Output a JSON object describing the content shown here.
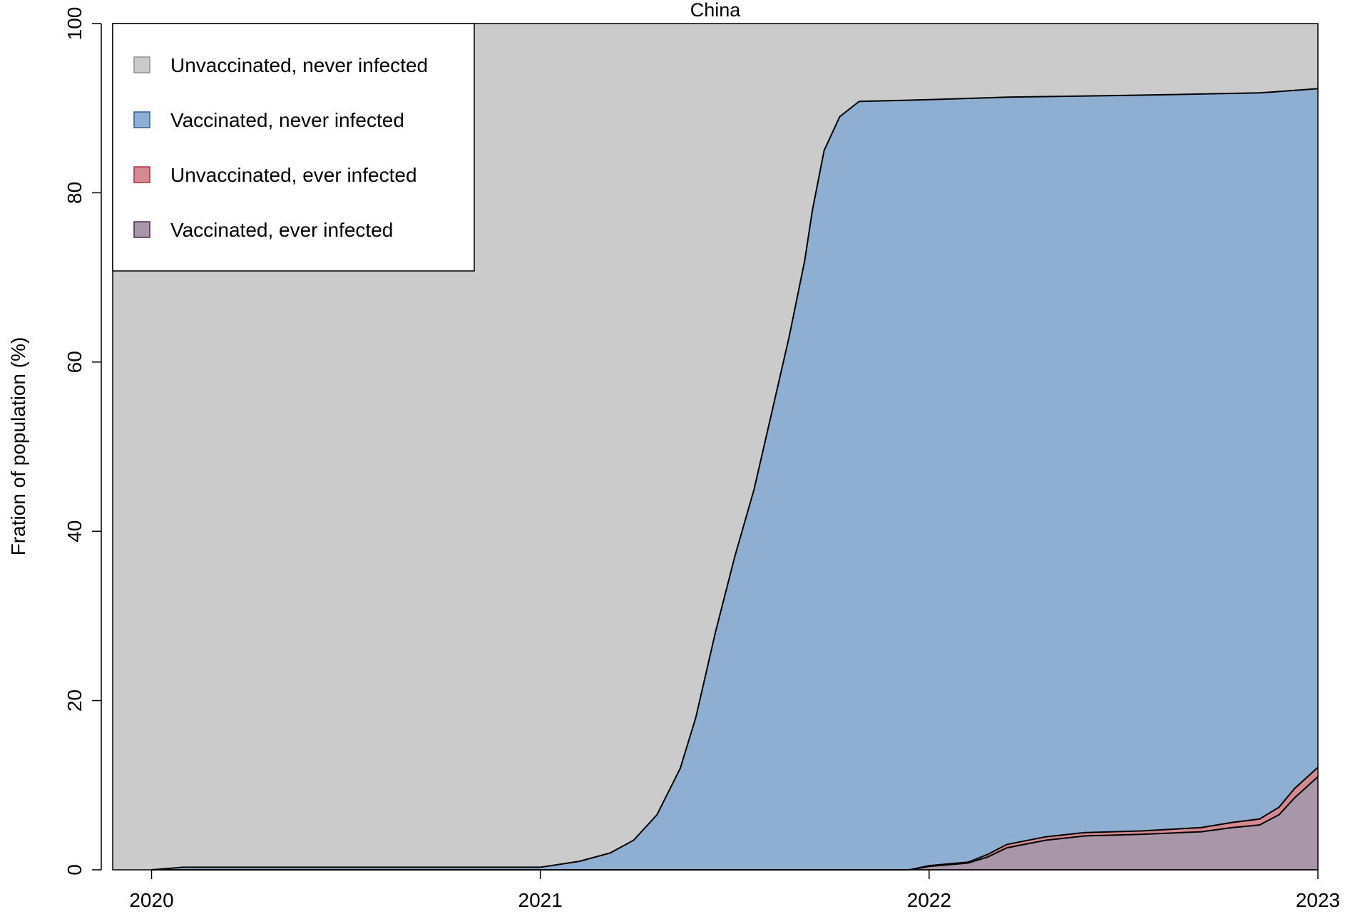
{
  "chart_data": {
    "type": "area",
    "stacked": true,
    "title": "China",
    "xlabel": "",
    "ylabel": "Fration of population (%)",
    "xlim": [
      2019.9,
      2023.0
    ],
    "ylim": [
      0,
      100
    ],
    "x_ticks": [
      2020,
      2021,
      2022,
      2023
    ],
    "x_tick_labels": [
      "2020",
      "2021",
      "2022",
      "2023"
    ],
    "y_ticks": [
      0,
      20,
      40,
      60,
      80,
      100
    ],
    "y_tick_labels": [
      "0",
      "20",
      "40",
      "60",
      "80",
      "100"
    ],
    "grid": false,
    "legend_position": "top-left",
    "colors": {
      "unvaccinated_never_infected": "#cbcbcb",
      "vaccinated_never_infected": "#8eaed2",
      "unvaccinated_ever_infected": "#d58a93",
      "vaccinated_ever_infected": "#a996a9",
      "outline": "#000000"
    },
    "legend": [
      {
        "label": "Unvaccinated, never infected",
        "fill": "#cbcbcb",
        "stroke": "#8f8f8f"
      },
      {
        "label": "Vaccinated, never infected",
        "fill": "#8eaed2",
        "stroke": "#2f5f9e"
      },
      {
        "label": "Unvaccinated, ever infected",
        "fill": "#d58a93",
        "stroke": "#b0303e"
      },
      {
        "label": "Vaccinated, ever infected",
        "fill": "#a996a9",
        "stroke": "#4b2f4b"
      }
    ],
    "boundaries": [
      {
        "name": "Vaccinated, ever infected (upper edge)",
        "points": [
          [
            2020.0,
            0
          ],
          [
            2021.95,
            0
          ],
          [
            2022.0,
            0.4
          ],
          [
            2022.1,
            0.8
          ],
          [
            2022.15,
            1.5
          ],
          [
            2022.2,
            2.6
          ],
          [
            2022.3,
            3.5
          ],
          [
            2022.4,
            4.0
          ],
          [
            2022.55,
            4.2
          ],
          [
            2022.7,
            4.5
          ],
          [
            2022.78,
            5.0
          ],
          [
            2022.85,
            5.3
          ],
          [
            2022.9,
            6.5
          ],
          [
            2022.94,
            8.5
          ],
          [
            2023.0,
            11.0
          ]
        ]
      },
      {
        "name": "Unvaccinated, ever infected (upper edge)",
        "points": [
          [
            2020.0,
            0
          ],
          [
            2021.95,
            0
          ],
          [
            2022.0,
            0.5
          ],
          [
            2022.1,
            0.9
          ],
          [
            2022.15,
            1.8
          ],
          [
            2022.2,
            3.0
          ],
          [
            2022.3,
            3.9
          ],
          [
            2022.4,
            4.4
          ],
          [
            2022.55,
            4.6
          ],
          [
            2022.7,
            5.0
          ],
          [
            2022.78,
            5.6
          ],
          [
            2022.85,
            6.0
          ],
          [
            2022.9,
            7.4
          ],
          [
            2022.94,
            9.6
          ],
          [
            2023.0,
            12.1
          ]
        ]
      },
      {
        "name": "Vaccinated, never infected (upper edge)",
        "points": [
          [
            2020.0,
            0
          ],
          [
            2020.08,
            0.3
          ],
          [
            2021.0,
            0.3
          ],
          [
            2021.1,
            1.0
          ],
          [
            2021.18,
            2.0
          ],
          [
            2021.24,
            3.5
          ],
          [
            2021.3,
            6.5
          ],
          [
            2021.36,
            12.0
          ],
          [
            2021.4,
            18.0
          ],
          [
            2021.45,
            28.0
          ],
          [
            2021.5,
            37.0
          ],
          [
            2021.55,
            45.0
          ],
          [
            2021.6,
            55.0
          ],
          [
            2021.64,
            63.0
          ],
          [
            2021.68,
            72.0
          ],
          [
            2021.7,
            78.0
          ],
          [
            2021.73,
            85.0
          ],
          [
            2021.77,
            89.0
          ],
          [
            2021.82,
            90.8
          ],
          [
            2022.0,
            91.0
          ],
          [
            2022.2,
            91.3
          ],
          [
            2022.5,
            91.5
          ],
          [
            2022.85,
            91.8
          ],
          [
            2023.0,
            92.3
          ]
        ]
      }
    ]
  }
}
